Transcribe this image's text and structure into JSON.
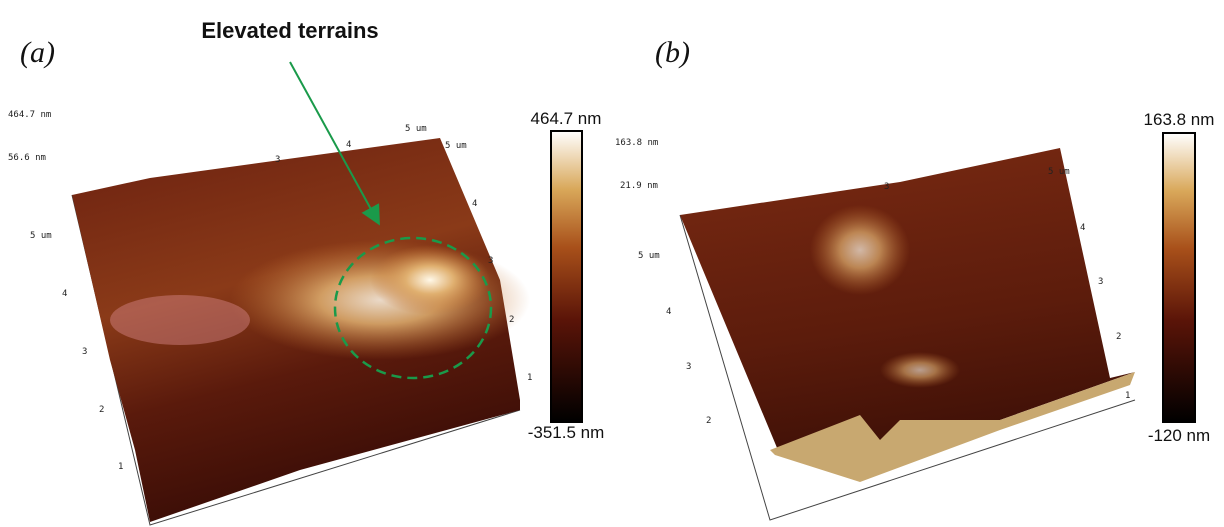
{
  "annotation": "Elevated terrains",
  "panels": [
    {
      "label": "(a)",
      "colorbar": {
        "max": "464.7 nm",
        "min": "-351.5 nm"
      },
      "z_ticks": [
        "464.7 nm",
        "56.6 nm"
      ],
      "left_axis": [
        "5 um",
        "4",
        "3",
        "2",
        "1"
      ],
      "right_axis": [
        "5 um",
        "4",
        "3",
        "2",
        "1"
      ],
      "top_axis": [
        "3",
        "4",
        "5 um"
      ]
    },
    {
      "label": "(b)",
      "colorbar": {
        "max": "163.8 nm",
        "min": "-120 nm"
      },
      "z_ticks": [
        "163.8 nm",
        "21.9 nm"
      ],
      "left_axis": [
        "5 um",
        "4",
        "3",
        "2"
      ],
      "right_axis": [
        "5 um",
        "4",
        "3",
        "2",
        "1"
      ],
      "top_axis": [
        "3"
      ]
    }
  ]
}
